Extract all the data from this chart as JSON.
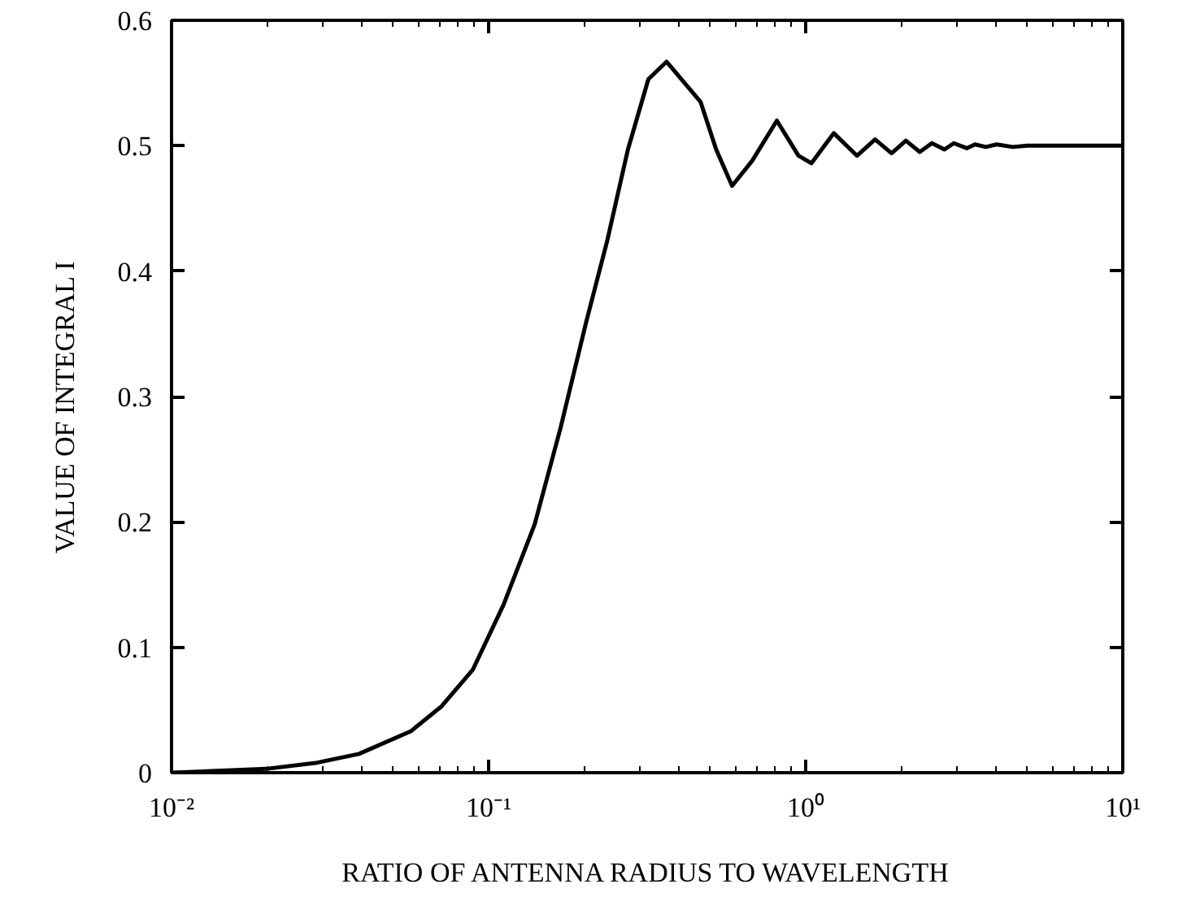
{
  "chart_data": {
    "type": "line",
    "xlabel": "RATIO OF ANTENNA RADIUS TO WAVELENGTH",
    "ylabel": "VALUE OF  INTEGRAL   I",
    "log": "x",
    "grid": false,
    "marker": "none",
    "line_style": "solid",
    "xlim": [
      0.01,
      10
    ],
    "ylim": [
      0,
      0.6
    ],
    "xticks": [
      {
        "value": 0.01,
        "label": "10⁻²"
      },
      {
        "value": 0.1,
        "label": "10⁻¹"
      },
      {
        "value": 1,
        "label": "10⁰"
      },
      {
        "value": 10,
        "label": "10¹"
      }
    ],
    "yticks": [
      0,
      0.1,
      0.2,
      0.3,
      0.4,
      0.5,
      0.6
    ],
    "x": [
      0.01,
      0.0198,
      0.0288,
      0.039,
      0.0568,
      0.0711,
      0.0891,
      0.1115,
      0.1397,
      0.1686,
      0.2034,
      0.2365,
      0.275,
      0.319,
      0.364,
      0.466,
      0.522,
      0.586,
      0.678,
      0.811,
      0.949,
      1.042,
      1.226,
      1.452,
      1.655,
      1.866,
      2.07,
      2.29,
      2.5,
      2.74,
      2.93,
      3.22,
      3.42,
      3.7,
      4.0,
      4.5,
      5.0,
      6.0,
      8.0,
      10.0
    ],
    "series": [
      {
        "color": "#000000",
        "values": [
          0.0,
          0.003,
          0.008,
          0.015,
          0.033,
          0.053,
          0.082,
          0.134,
          0.198,
          0.275,
          0.36,
          0.424,
          0.497,
          0.553,
          0.567,
          0.535,
          0.497,
          0.468,
          0.488,
          0.52,
          0.492,
          0.486,
          0.51,
          0.492,
          0.505,
          0.494,
          0.504,
          0.495,
          0.502,
          0.497,
          0.502,
          0.498,
          0.501,
          0.499,
          0.501,
          0.499,
          0.5,
          0.5,
          0.5,
          0.5
        ]
      }
    ]
  }
}
